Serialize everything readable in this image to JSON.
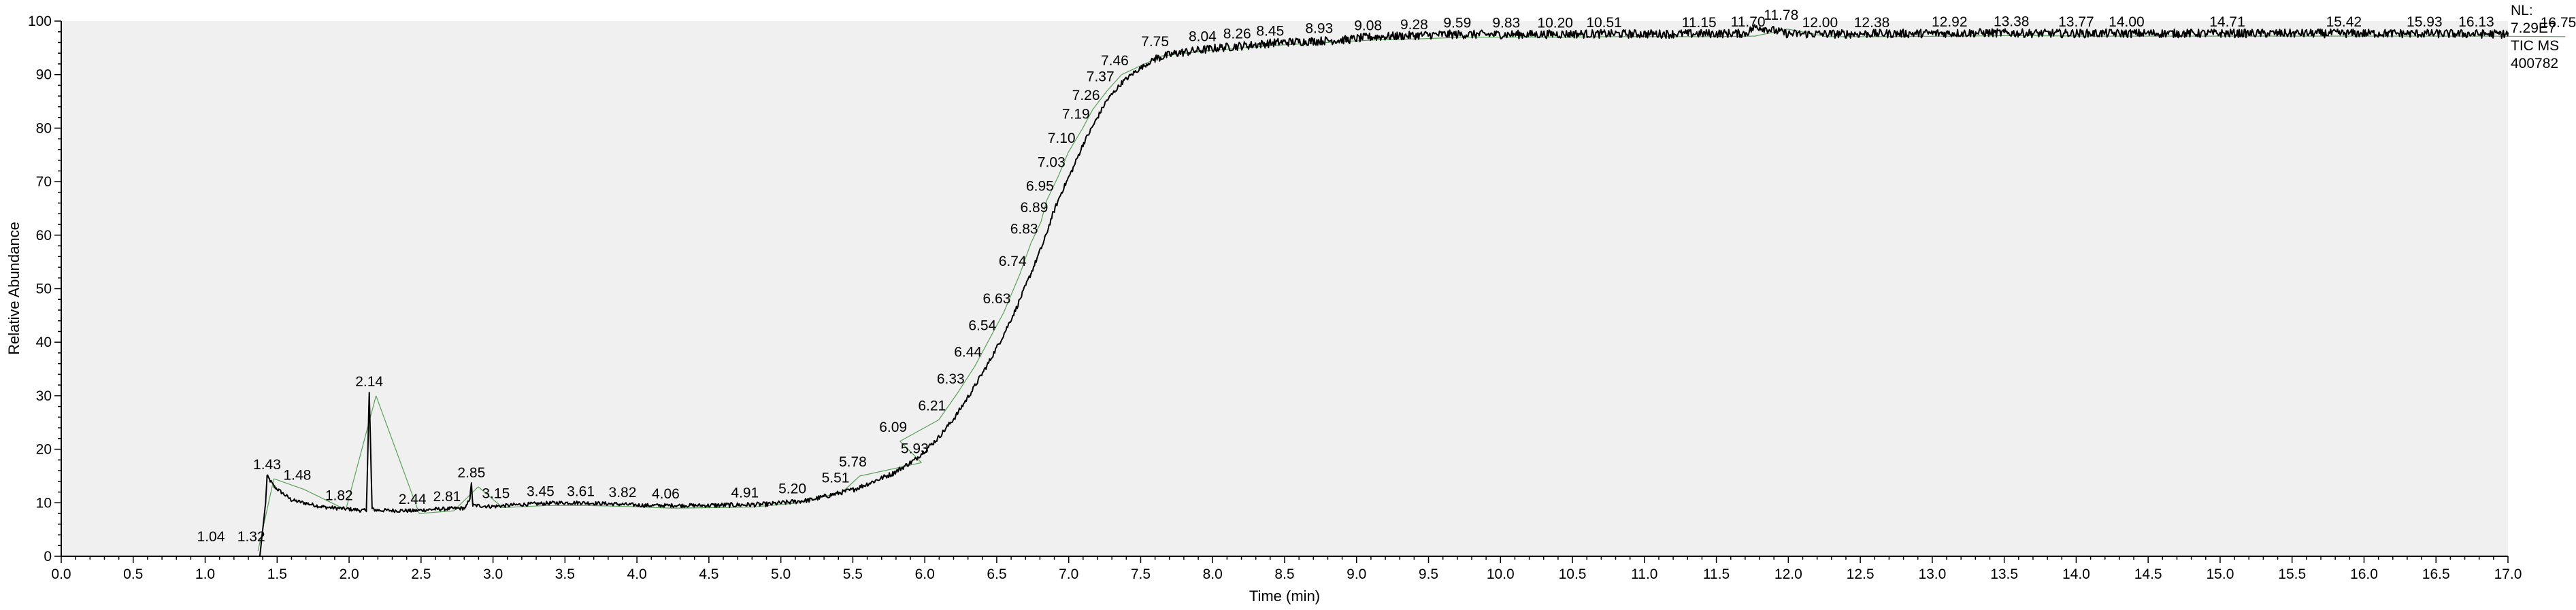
{
  "chart_data": {
    "type": "line",
    "xlabel": "Time (min)",
    "ylabel": "Relative Abundance",
    "xlim": [
      0.0,
      17.0
    ],
    "ylim": [
      0,
      100
    ],
    "x_ticks": [
      "0.0",
      "0.5",
      "1.0",
      "1.5",
      "2.0",
      "2.5",
      "3.0",
      "3.5",
      "4.0",
      "4.5",
      "5.0",
      "5.5",
      "6.0",
      "6.5",
      "7.0",
      "7.5",
      "8.0",
      "8.5",
      "9.0",
      "9.5",
      "10.0",
      "10.5",
      "11.0",
      "11.5",
      "12.0",
      "12.5",
      "13.0",
      "13.5",
      "14.0",
      "14.5",
      "15.0",
      "15.5",
      "16.0",
      "16.5",
      "17.0"
    ],
    "y_ticks": [
      "0",
      "10",
      "20",
      "30",
      "40",
      "50",
      "60",
      "70",
      "80",
      "90",
      "100"
    ],
    "info_text": [
      "NL:",
      "7.29E7",
      "TIC  MS",
      "400782"
    ],
    "series": [
      {
        "x": [
          0.0,
          1.38,
          1.42,
          1.43,
          1.48,
          1.6,
          1.82,
          2.0,
          2.12,
          2.14,
          2.16,
          2.2,
          2.44,
          2.6,
          2.81,
          2.84,
          2.85,
          2.86,
          3.0,
          3.15,
          3.45,
          3.61,
          3.82,
          4.06,
          4.5,
          4.91,
          5.2,
          5.51,
          5.78,
          5.93,
          6.09,
          6.21,
          6.33,
          6.44,
          6.54,
          6.63,
          6.74,
          6.83,
          6.89,
          6.95,
          7.03,
          7.1,
          7.19,
          7.26,
          7.37,
          7.46,
          7.6,
          7.75,
          8.04,
          8.26,
          8.45,
          8.93,
          9.08,
          9.28,
          9.59,
          9.83,
          10.2,
          10.51,
          11.15,
          11.7,
          11.78,
          12.0,
          12.38,
          12.92,
          13.38,
          13.77,
          14.0,
          14.71,
          15.42,
          15.93,
          16.13,
          16.75,
          17.0
        ],
        "y": [
          0,
          0,
          10,
          15,
          13,
          10.5,
          9.2,
          8.8,
          8.5,
          30.5,
          8.8,
          8.6,
          8.5,
          8.8,
          9.0,
          11,
          13.5,
          9.5,
          9.3,
          9.6,
          10,
          10,
          9.8,
          9.5,
          9.5,
          9.7,
          10.5,
          12.5,
          15.5,
          18,
          22,
          26,
          31,
          36,
          41,
          46,
          53,
          59,
          64,
          68,
          72.5,
          77,
          81.5,
          85,
          88.5,
          90.5,
          93,
          94,
          95,
          95.5,
          96,
          96.5,
          97,
          97.2,
          97.5,
          97.5,
          97.5,
          97.6,
          97.6,
          97.7,
          99,
          97.6,
          97.6,
          97.7,
          97.8,
          97.7,
          97.7,
          97.7,
          97.7,
          97.7,
          97.7,
          97.6,
          97.6
        ]
      }
    ],
    "peak_labels": [
      {
        "label": "1.04",
        "x": 1.04,
        "y": 1.5
      },
      {
        "label": "1.32",
        "x": 1.32,
        "y": 1.5
      },
      {
        "label": "1.43",
        "x": 1.43,
        "y": 15
      },
      {
        "label": "1.48",
        "x": 1.64,
        "y": 13
      },
      {
        "label": "1.82",
        "x": 1.93,
        "y": 9.2
      },
      {
        "label": "2.14",
        "x": 2.14,
        "y": 30.5
      },
      {
        "label": "2.44",
        "x": 2.44,
        "y": 8.5
      },
      {
        "label": "2.81",
        "x": 2.68,
        "y": 9.0
      },
      {
        "label": "2.85",
        "x": 2.85,
        "y": 13.5
      },
      {
        "label": "3.15",
        "x": 3.02,
        "y": 9.6
      },
      {
        "label": "3.45",
        "x": 3.33,
        "y": 10
      },
      {
        "label": "3.61",
        "x": 3.61,
        "y": 10
      },
      {
        "label": "3.82",
        "x": 3.9,
        "y": 9.8
      },
      {
        "label": "4.06",
        "x": 4.2,
        "y": 9.5
      },
      {
        "label": "4.91",
        "x": 4.75,
        "y": 9.7
      },
      {
        "label": "5.20",
        "x": 5.08,
        "y": 10.5
      },
      {
        "label": "5.51",
        "x": 5.38,
        "y": 12.5
      },
      {
        "label": "5.78",
        "x": 5.5,
        "y": 15.5
      },
      {
        "label": "5.93",
        "x": 5.93,
        "y": 18
      },
      {
        "label": "6.09",
        "x": 5.78,
        "y": 22
      },
      {
        "label": "6.21",
        "x": 6.05,
        "y": 26
      },
      {
        "label": "6.33",
        "x": 6.18,
        "y": 31
      },
      {
        "label": "6.44",
        "x": 6.3,
        "y": 36
      },
      {
        "label": "6.54",
        "x": 6.4,
        "y": 41
      },
      {
        "label": "6.63",
        "x": 6.5,
        "y": 46
      },
      {
        "label": "6.74",
        "x": 6.61,
        "y": 53
      },
      {
        "label": "6.83",
        "x": 6.69,
        "y": 59
      },
      {
        "label": "6.89",
        "x": 6.76,
        "y": 63
      },
      {
        "label": "6.95",
        "x": 6.8,
        "y": 67
      },
      {
        "label": "7.03",
        "x": 6.88,
        "y": 71.5
      },
      {
        "label": "7.10",
        "x": 6.95,
        "y": 76
      },
      {
        "label": "7.19",
        "x": 7.05,
        "y": 80.5
      },
      {
        "label": "7.26",
        "x": 7.12,
        "y": 84
      },
      {
        "label": "7.37",
        "x": 7.22,
        "y": 87.5
      },
      {
        "label": "7.46",
        "x": 7.32,
        "y": 90.5
      },
      {
        "label": "7.75",
        "x": 7.6,
        "y": 94
      },
      {
        "label": "8.04",
        "x": 7.93,
        "y": 95
      },
      {
        "label": "8.26",
        "x": 8.17,
        "y": 95.5
      },
      {
        "label": "8.45",
        "x": 8.4,
        "y": 96
      },
      {
        "label": "8.93",
        "x": 8.74,
        "y": 96.5
      },
      {
        "label": "9.08",
        "x": 9.08,
        "y": 97
      },
      {
        "label": "9.28",
        "x": 9.4,
        "y": 97.2
      },
      {
        "label": "9.59",
        "x": 9.7,
        "y": 97.5
      },
      {
        "label": "9.83",
        "x": 10.04,
        "y": 97.5
      },
      {
        "label": "10.20",
        "x": 10.38,
        "y": 97.5
      },
      {
        "label": "10.51",
        "x": 10.72,
        "y": 97.6
      },
      {
        "label": "11.15",
        "x": 11.38,
        "y": 97.6
      },
      {
        "label": "11.70",
        "x": 11.72,
        "y": 97.7
      },
      {
        "label": "11.78",
        "x": 11.95,
        "y": 99
      },
      {
        "label": "12.00",
        "x": 12.22,
        "y": 97.6
      },
      {
        "label": "12.38",
        "x": 12.58,
        "y": 97.6
      },
      {
        "label": "12.92",
        "x": 13.12,
        "y": 97.7
      },
      {
        "label": "13.38",
        "x": 13.55,
        "y": 97.8
      },
      {
        "label": "13.77",
        "x": 14.0,
        "y": 97.7
      },
      {
        "label": "14.00",
        "x": 14.35,
        "y": 97.7
      },
      {
        "label": "14.71",
        "x": 15.05,
        "y": 97.7
      },
      {
        "label": "15.42",
        "x": 15.86,
        "y": 97.7
      },
      {
        "label": "15.93",
        "x": 16.42,
        "y": 97.7
      },
      {
        "label": "16.13",
        "x": 16.78,
        "y": 97.7
      },
      {
        "label": "16.75",
        "x": 17.35,
        "y": 97.6
      }
    ]
  }
}
